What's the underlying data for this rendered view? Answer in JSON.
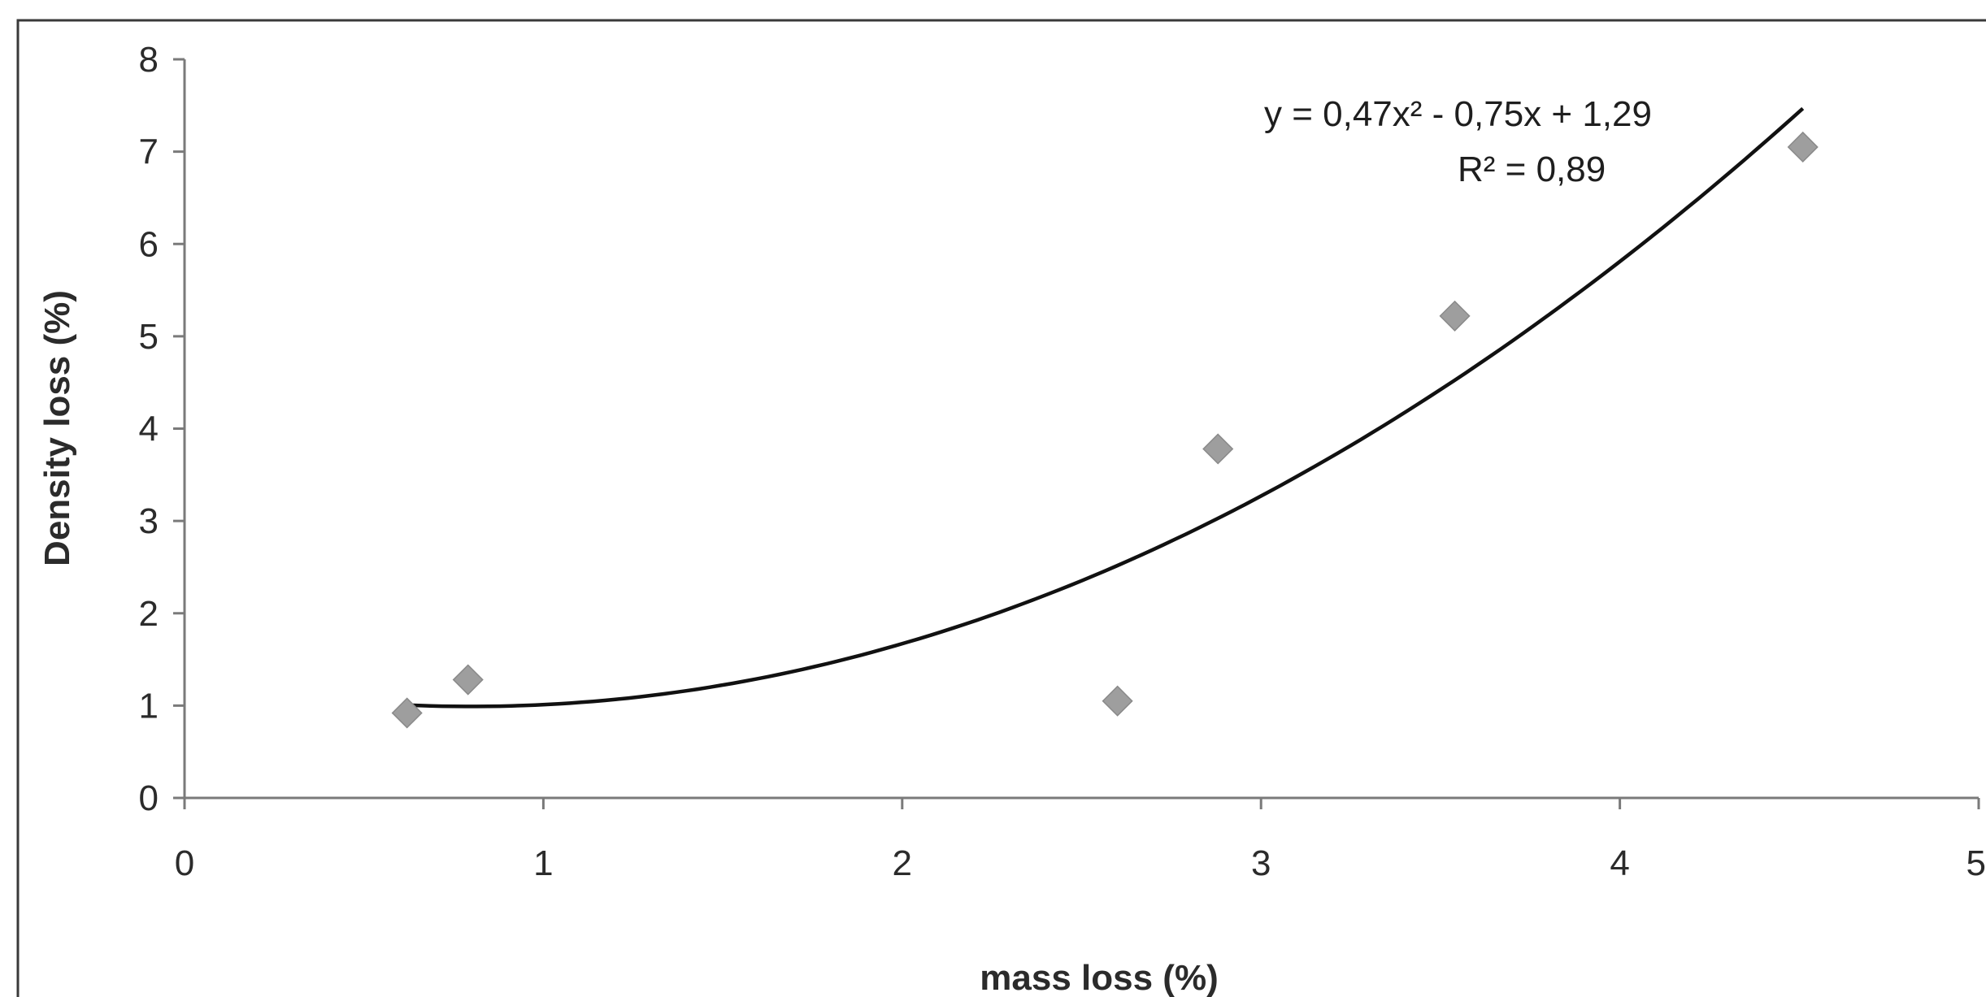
{
  "chart_data": {
    "type": "scatter",
    "title": "",
    "xlabel": "mass loss (%)",
    "ylabel": "Density loss (%)",
    "xlim": [
      0,
      5
    ],
    "ylim": [
      0,
      8
    ],
    "x_ticks": [
      "0",
      "1",
      "2",
      "3",
      "4",
      "5"
    ],
    "y_ticks": [
      "0",
      "1",
      "2",
      "3",
      "4",
      "5",
      "6",
      "7",
      "8"
    ],
    "grid": false,
    "legend": "none",
    "series": [
      {
        "points": [
          {
            "x": 0.62,
            "y": 0.92
          },
          {
            "x": 0.79,
            "y": 1.28
          },
          {
            "x": 2.6,
            "y": 1.05
          },
          {
            "x": 2.88,
            "y": 3.78
          },
          {
            "x": 3.54,
            "y": 5.22
          },
          {
            "x": 4.51,
            "y": 7.05
          }
        ],
        "marker": "diamond",
        "color": "#9e9e9e"
      }
    ],
    "trendline": {
      "type": "polynomial",
      "order": 2,
      "coefficients": [
        0.47,
        -0.75,
        1.29
      ],
      "x_range": [
        0.62,
        4.51
      ],
      "color": "#111111"
    },
    "annotations": [
      {
        "id": "equation",
        "text": "y = 0,47x² - 0,75x + 1,29"
      },
      {
        "id": "r_squared",
        "text": "R² = 0,89"
      }
    ]
  }
}
